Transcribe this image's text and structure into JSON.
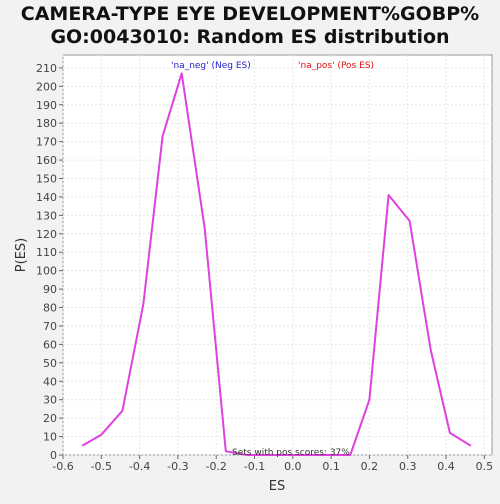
{
  "chart_data": {
    "type": "line",
    "title_line1": "CAMERA-TYPE EYE DEVELOPMENT%GOBP%",
    "title_line2": "GO:0043010: Random ES distribution",
    "xlabel": "ES",
    "ylabel": "P(ES)",
    "xlim": [
      -0.6,
      0.52
    ],
    "ylim": [
      0,
      217
    ],
    "x_ticks": [
      -0.6,
      -0.5,
      -0.4,
      -0.3,
      -0.2,
      -0.1,
      0.0,
      0.1,
      0.2,
      0.3,
      0.4,
      0.5
    ],
    "x_tick_labels": [
      "-0.6",
      "-0.5",
      "-0.4",
      "-0.3",
      "-0.2",
      "-0.1",
      "0.0",
      "0.1",
      "0.2",
      "0.3",
      "0.4",
      "0.5"
    ],
    "y_ticks": [
      0,
      10,
      20,
      30,
      40,
      50,
      60,
      70,
      80,
      90,
      100,
      110,
      120,
      130,
      140,
      150,
      160,
      170,
      180,
      190,
      200,
      210
    ],
    "grid": true,
    "legend": [
      {
        "label": "'na_neg' (Neg ES)",
        "color": "#2222cc"
      },
      {
        "label": "'na_pos' (Pos ES)",
        "color": "#dd1111"
      }
    ],
    "annotation": "Sets with pos scores: 37%",
    "series": [
      {
        "color": "#e040e0",
        "x": [
          -0.55,
          -0.5,
          -0.445,
          -0.39,
          -0.34,
          -0.29,
          -0.23,
          -0.175,
          -0.12,
          0.0,
          0.1,
          0.15,
          0.2,
          0.25,
          0.305,
          0.36,
          0.41,
          0.465
        ],
        "y": [
          5,
          11,
          24,
          82,
          173,
          207,
          123,
          2,
          0,
          0,
          0,
          0,
          30,
          141,
          127,
          57,
          12,
          5
        ]
      }
    ]
  }
}
